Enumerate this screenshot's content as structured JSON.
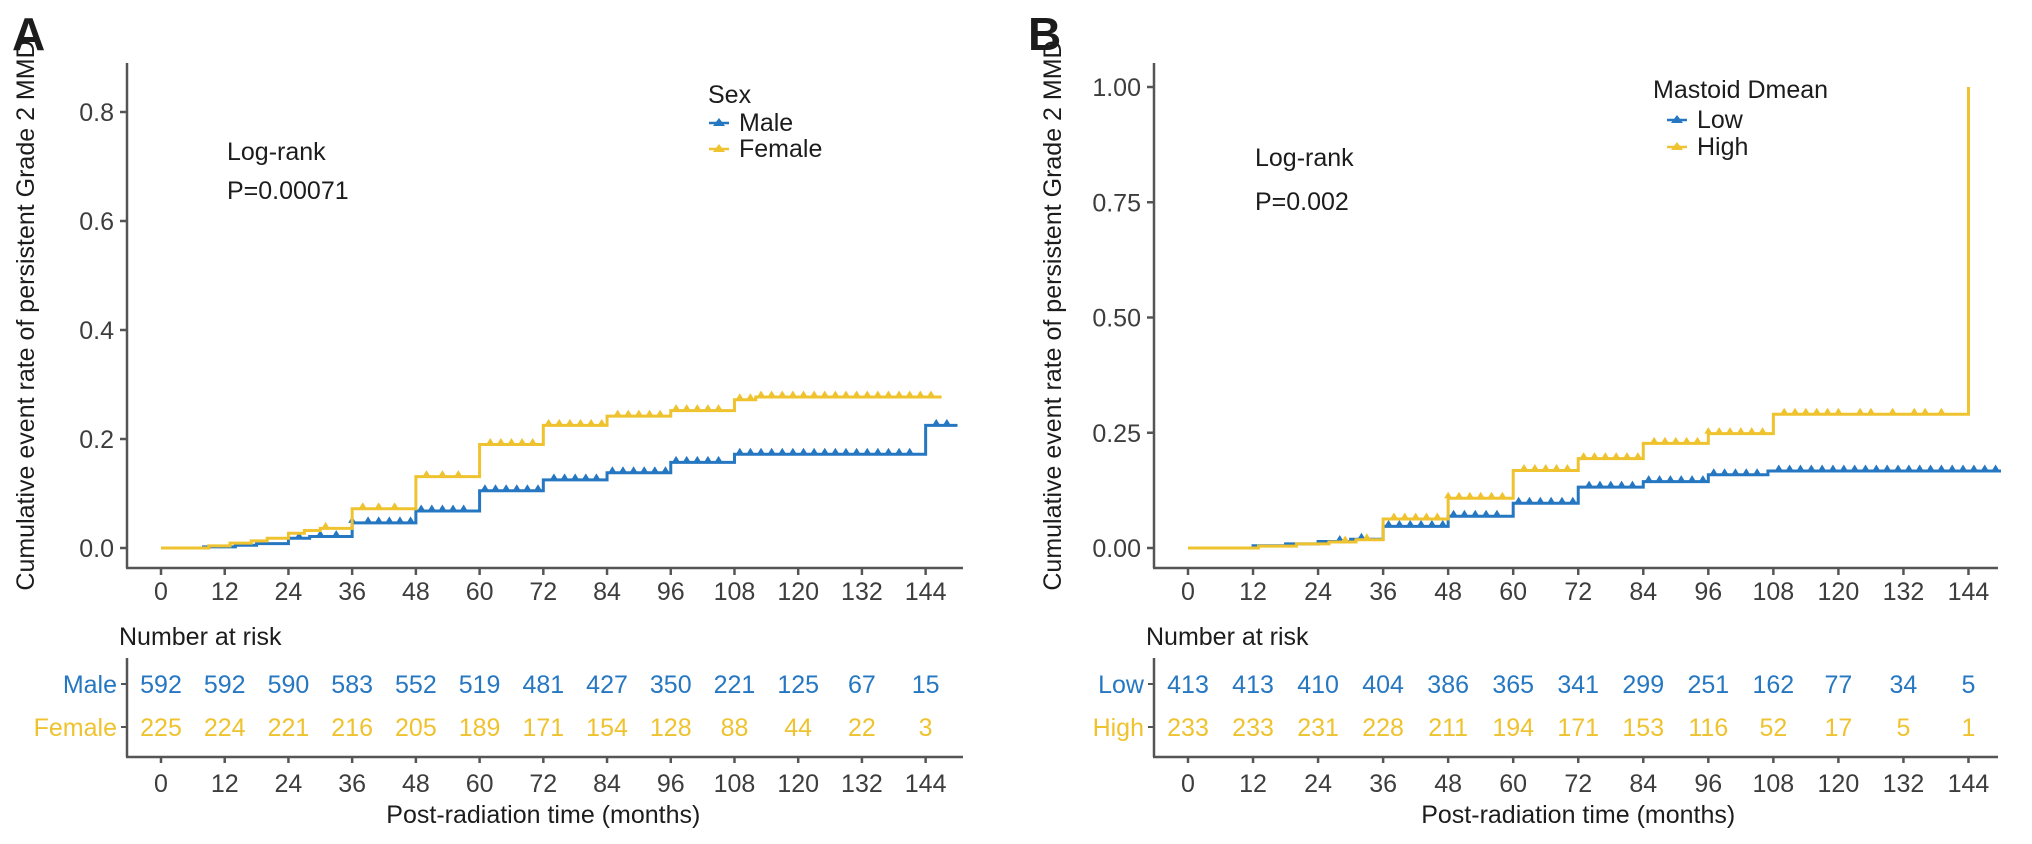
{
  "figure_name": "cumulative-incidence-persistent-grade2-MMD",
  "colors": {
    "blue": "#2677C2",
    "yellow": "#EFC32F",
    "axis": "#555555",
    "tick_text": "#3d3d3d",
    "text": "#1c1c1c"
  },
  "chart_data": [
    {
      "type": "line",
      "subtype": "step-cumulative-incidence",
      "panel_label": "A",
      "xlabel": "Post-radiation time (months)",
      "ylabel": "Cumulative event rate of persistent Grade 2 MMD",
      "annotation": [
        "Log-rank",
        "P=0.00071"
      ],
      "legend_title": "Sex",
      "legend_position": "top-right-inside",
      "grid": false,
      "x_ticks": [
        0,
        12,
        24,
        36,
        48,
        60,
        72,
        84,
        96,
        108,
        120,
        132,
        144
      ],
      "y_ticks": [
        0,
        0.2,
        0.4,
        0.6,
        0.8
      ],
      "y_tick_labels": [
        "0.0",
        "0.2",
        "0.4",
        "0.6",
        "0.8"
      ],
      "xlim": [
        0,
        150
      ],
      "ylim": [
        0,
        0.89
      ],
      "series": [
        {
          "name": "Male",
          "color": "#2677C2",
          "steps": [
            [
              0,
              0
            ],
            [
              8,
              0.002
            ],
            [
              14,
              0.005
            ],
            [
              18,
              0.008
            ],
            [
              24,
              0.018
            ],
            [
              28,
              0.021
            ],
            [
              36,
              0.046
            ],
            [
              48,
              0.068
            ],
            [
              60,
              0.105
            ],
            [
              72,
              0.125
            ],
            [
              84,
              0.138
            ],
            [
              96,
              0.157
            ],
            [
              108,
              0.172
            ],
            [
              144,
              0.225
            ]
          ],
          "end_x": 150,
          "censor_x": [
            26,
            30,
            33,
            36,
            39,
            41,
            43,
            45,
            47,
            49,
            51,
            53,
            55,
            57,
            61,
            63,
            65,
            67,
            69,
            71,
            74,
            76,
            78,
            80,
            82,
            85,
            87,
            89,
            91,
            93,
            95,
            97,
            99,
            101,
            103,
            105,
            109,
            111,
            113,
            115,
            117,
            119,
            121,
            123,
            125,
            127,
            129,
            131,
            133,
            135,
            137,
            139,
            141,
            146,
            148
          ]
        },
        {
          "name": "Female",
          "color": "#EFC32F",
          "steps": [
            [
              0,
              0
            ],
            [
              9,
              0.004
            ],
            [
              13,
              0.009
            ],
            [
              17,
              0.013
            ],
            [
              20,
              0.018
            ],
            [
              24,
              0.027
            ],
            [
              27,
              0.032
            ],
            [
              30,
              0.036
            ],
            [
              36,
              0.072
            ],
            [
              48,
              0.131
            ],
            [
              60,
              0.19
            ],
            [
              72,
              0.225
            ],
            [
              84,
              0.242
            ],
            [
              96,
              0.252
            ],
            [
              108,
              0.272
            ],
            [
              112,
              0.277
            ]
          ],
          "end_x": 147,
          "censor_x": [
            31,
            38,
            41,
            44,
            50,
            53,
            56,
            62,
            64,
            66,
            68,
            70,
            73,
            75,
            77,
            79,
            81,
            83,
            86,
            88,
            90,
            92,
            94,
            97,
            99,
            101,
            103,
            105,
            109,
            111,
            113,
            115,
            117,
            119,
            121,
            123,
            125,
            127,
            129,
            131,
            133,
            135,
            137,
            139,
            141,
            143,
            145
          ]
        }
      ],
      "risk_table": {
        "title": "Number at risk",
        "time_points": [
          0,
          12,
          24,
          36,
          48,
          60,
          72,
          84,
          96,
          108,
          120,
          132,
          144
        ],
        "rows": [
          {
            "label": "Male",
            "color": "#2677C2",
            "values": [
              592,
              592,
              590,
              583,
              552,
              519,
              481,
              427,
              350,
              221,
              125,
              67,
              15
            ]
          },
          {
            "label": "Female",
            "color": "#EFC32F",
            "values": [
              225,
              224,
              221,
              216,
              205,
              189,
              171,
              154,
              128,
              88,
              44,
              22,
              3
            ]
          }
        ]
      }
    },
    {
      "type": "line",
      "subtype": "step-cumulative-incidence",
      "panel_label": "B",
      "xlabel": "Post-radiation time (months)",
      "ylabel": "Cumulative event rate of persistent Grade 2 MMD",
      "annotation": [
        "Log-rank",
        "P=0.002"
      ],
      "legend_title": "Mastoid Dmean",
      "legend_position": "top-right-inside",
      "grid": false,
      "x_ticks": [
        0,
        12,
        24,
        36,
        48,
        60,
        72,
        84,
        96,
        108,
        120,
        132,
        144
      ],
      "y_ticks": [
        0,
        0.25,
        0.5,
        0.75,
        1.0
      ],
      "y_tick_labels": [
        "0.00",
        "0.25",
        "0.50",
        "0.75",
        "1.00"
      ],
      "xlim": [
        0,
        150
      ],
      "ylim": [
        0,
        1.05
      ],
      "series": [
        {
          "name": "Low",
          "color": "#2677C2",
          "steps": [
            [
              0,
              0
            ],
            [
              12,
              0.005
            ],
            [
              18,
              0.009
            ],
            [
              24,
              0.014
            ],
            [
              30,
              0.019
            ],
            [
              36,
              0.047
            ],
            [
              48,
              0.069
            ],
            [
              60,
              0.097
            ],
            [
              72,
              0.132
            ],
            [
              84,
              0.144
            ],
            [
              96,
              0.159
            ],
            [
              107,
              0.167
            ]
          ],
          "end_x": 150,
          "censor_x": [
            28,
            32,
            37,
            39,
            41,
            43,
            45,
            47,
            49,
            51,
            53,
            55,
            57,
            61,
            63,
            65,
            67,
            69,
            71,
            74,
            76,
            78,
            80,
            82,
            85,
            87,
            89,
            91,
            93,
            95,
            97,
            99,
            101,
            103,
            105,
            109,
            111,
            113,
            115,
            117,
            119,
            121,
            123,
            125,
            127,
            129,
            131,
            133,
            135,
            137,
            139,
            141,
            143,
            145,
            147,
            149
          ]
        },
        {
          "name": "High",
          "color": "#EFC32F",
          "steps": [
            [
              0,
              0
            ],
            [
              13,
              0.004
            ],
            [
              20,
              0.009
            ],
            [
              26,
              0.013
            ],
            [
              31,
              0.018
            ],
            [
              36,
              0.063
            ],
            [
              48,
              0.108
            ],
            [
              60,
              0.168
            ],
            [
              72,
              0.194
            ],
            [
              84,
              0.227
            ],
            [
              96,
              0.248
            ],
            [
              108,
              0.29
            ],
            [
              144,
              1.0
            ]
          ],
          "end_x": 144,
          "censor_x": [
            29,
            33,
            38,
            40,
            42,
            44,
            46,
            48,
            50,
            52,
            54,
            56,
            58,
            62,
            64,
            66,
            68,
            70,
            73,
            75,
            77,
            79,
            81,
            83,
            86,
            88,
            90,
            92,
            94,
            96,
            98,
            100,
            102,
            104,
            106,
            110,
            112,
            114,
            116,
            118,
            120,
            124,
            126,
            130,
            134,
            136,
            139
          ]
        }
      ],
      "risk_table": {
        "title": "Number at risk",
        "time_points": [
          0,
          12,
          24,
          36,
          48,
          60,
          72,
          84,
          96,
          108,
          120,
          132,
          144
        ],
        "rows": [
          {
            "label": "Low",
            "color": "#2677C2",
            "values": [
              413,
              413,
              410,
              404,
              386,
              365,
              341,
              299,
              251,
              162,
              77,
              34,
              5
            ]
          },
          {
            "label": "High",
            "color": "#EFC32F",
            "values": [
              233,
              233,
              231,
              228,
              211,
              194,
              171,
              153,
              116,
              52,
              17,
              5,
              1
            ]
          }
        ]
      }
    }
  ]
}
